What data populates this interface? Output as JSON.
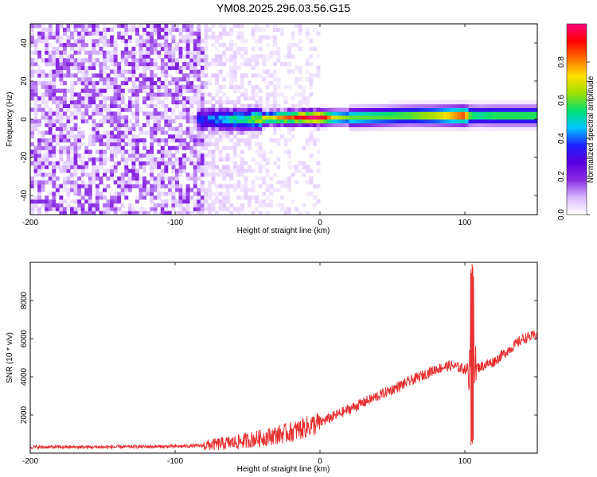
{
  "title": "YM08.2025.296.03.56.G15",
  "chart_data": [
    {
      "type": "heatmap",
      "xlabel": "Height of straight line (km)",
      "ylabel": "Frequency (Hz)",
      "xlim": [
        -200,
        150
      ],
      "ylim": [
        -50,
        50
      ],
      "xticks": [
        -200,
        -100,
        0,
        100
      ],
      "yticks": [
        -40,
        -20,
        0,
        20,
        40
      ],
      "colorbar": {
        "label": "Normalized spectral amplitude",
        "range": [
          0,
          1
        ],
        "ticks": [
          "0.0",
          "0.2",
          "0.4",
          "0.6",
          "0.8"
        ],
        "colormap": [
          "#ffffff",
          "#d9b8ff",
          "#8a2be2",
          "#5a00e0",
          "#2020ff",
          "#00c8ff",
          "#00e070",
          "#a0e000",
          "#ffe000",
          "#ff7000",
          "#ff0000",
          "#ff0080"
        ]
      },
      "noise_region_x": [
        -200,
        -80
      ],
      "fade_region_x": [
        -80,
        -20
      ],
      "ridge": {
        "x": [
          -82,
          -70,
          -60,
          -50,
          -40,
          -30,
          -20,
          -10,
          0,
          10,
          20,
          40,
          60,
          80,
          100,
          104,
          110,
          120,
          150
        ],
        "freq": [
          0,
          0,
          0,
          0,
          0.5,
          0.8,
          1,
          1,
          1,
          1,
          1,
          1.5,
          2,
          2,
          2,
          2,
          2,
          2,
          2
        ],
        "peak_amplitude": [
          0.35,
          0.45,
          0.5,
          0.55,
          0.65,
          0.75,
          0.85,
          0.95,
          1.0,
          0.7,
          0.6,
          0.6,
          0.62,
          0.7,
          0.9,
          0.6,
          0.55,
          0.6,
          0.6
        ]
      }
    },
    {
      "type": "line",
      "xlabel": "Height of straight line (km)",
      "ylabel": "SNR (10 * v/v)",
      "xlim": [
        -200,
        150
      ],
      "ylim": [
        0,
        10000
      ],
      "xticks": [
        -200,
        -100,
        0,
        100
      ],
      "yticks": [
        2000,
        4000,
        6000,
        8000
      ],
      "color": "#e83030",
      "trend": {
        "x": [
          -200,
          -150,
          -100,
          -80,
          -60,
          -40,
          -20,
          0,
          20,
          40,
          60,
          80,
          90,
          100,
          104,
          110,
          120,
          130,
          140,
          150
        ],
        "y": [
          320,
          320,
          350,
          400,
          550,
          800,
          1100,
          1600,
          2300,
          3000,
          3700,
          4400,
          4600,
          4400,
          4500,
          4500,
          4800,
          5400,
          6000,
          6200
        ]
      },
      "spike": {
        "x": 105,
        "y_max": 10000,
        "y_min": 400
      }
    }
  ]
}
